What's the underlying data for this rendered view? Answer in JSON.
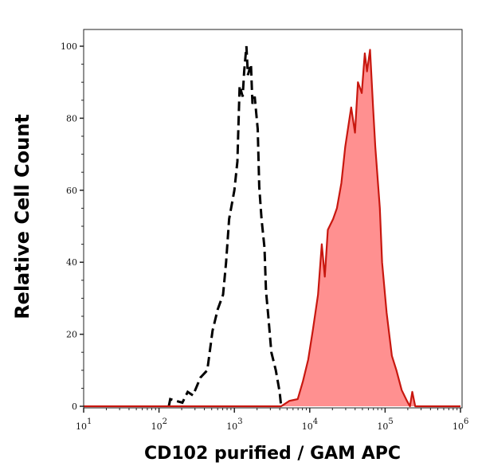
{
  "chart_data": {
    "type": "area",
    "title": "",
    "xlabel": "CD102 purified / GAM APC",
    "ylabel": "Relative Cell Count",
    "x_scale": "log",
    "xlim": [
      10,
      1000000
    ],
    "ylim": [
      0,
      100
    ],
    "x_ticks": [
      {
        "base": "10",
        "exp": "1"
      },
      {
        "base": "10",
        "exp": "2"
      },
      {
        "base": "10",
        "exp": "3"
      },
      {
        "base": "10",
        "exp": "4"
      },
      {
        "base": "10",
        "exp": "5"
      },
      {
        "base": "10",
        "exp": "6"
      }
    ],
    "y_ticks": [
      "0",
      "20",
      "40",
      "60",
      "80",
      "100"
    ],
    "grid": false,
    "series": [
      {
        "style": "dashed-line",
        "color": "#000000",
        "x": [
          135,
          141,
          204,
          240,
          282,
          355,
          437,
          513,
          603,
          708,
          776,
          851,
          1000,
          1096,
          1122,
          1175,
          1288,
          1349,
          1445,
          1514,
          1660,
          1738,
          1862,
          2042,
          2138,
          2291,
          2512,
          2630,
          2818,
          3090,
          3548,
          3981,
          4169
        ],
        "y": [
          0,
          2,
          1,
          4,
          3,
          8,
          10,
          21,
          27,
          31,
          40,
          52,
          60,
          68,
          75,
          89,
          86,
          93,
          100,
          92,
          95,
          84,
          86,
          77,
          61,
          52,
          44,
          32,
          25,
          15,
          10,
          4,
          0
        ]
      },
      {
        "style": "filled-area",
        "color": "#c8170f",
        "fill": "#ff9090",
        "x": [
          10,
          4169,
          5370,
          6918,
          8128,
          9550,
          10965,
          12882,
          14454,
          15849,
          17378,
          20417,
          22909,
          26303,
          29512,
          35481,
          39811,
          43652,
          48978,
          53703,
          57544,
          63096,
          69183,
          74131,
          85114,
          91201,
          104713,
          123027,
          141254,
          165959,
          194984,
          213796,
          229087,
          251189,
          1000000
        ],
        "y": [
          0,
          0,
          1.5,
          2,
          7,
          13,
          21,
          31,
          45,
          36,
          49,
          52,
          55,
          62,
          72,
          83,
          76,
          90,
          87,
          98,
          93,
          99,
          83,
          72,
          55,
          40,
          26,
          14,
          10,
          4.5,
          1.5,
          0,
          4,
          0,
          0
        ]
      }
    ]
  }
}
